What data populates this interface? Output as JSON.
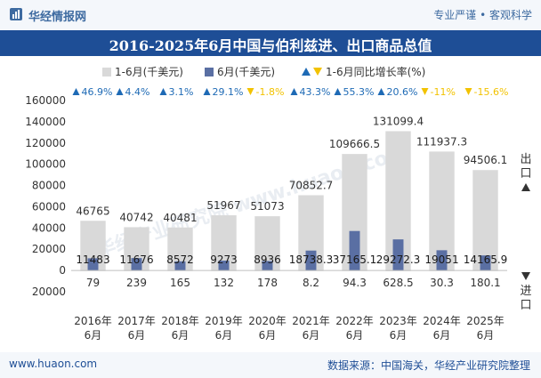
{
  "header": {
    "site_name": "华经情报网",
    "slogan": "专业严谨 • 客观科学",
    "logo_icon": "bar-chart-logo-icon"
  },
  "title": "2016-2025年6月中国与伯利兹进、出口商品总值",
  "footer": {
    "url": "www.huaon.com",
    "source": "数据来源：中国海关，华经产业研究院整理"
  },
  "watermark": "华经产业研究院 www.huaon.com",
  "side_labels": {
    "top": "出口",
    "bottom": "进口"
  },
  "colors": {
    "ytd_bar": "#d9d9d9",
    "month_bar": "#5a6fa3",
    "up": "#1e6ab5",
    "down": "#f2c200",
    "title_bg": "#1e4e96"
  },
  "chart_data": {
    "type": "bar",
    "title": "2016-2025年6月中国与伯利兹进、出口商品总值",
    "categories": [
      "2016年\n6月",
      "2017年\n6月",
      "2018年\n6月",
      "2019年\n6月",
      "2020年\n6月",
      "2021年\n6月",
      "2022年\n6月",
      "2023年\n6月",
      "2024年\n6月",
      "2025年\n6月"
    ],
    "legend": [
      "1-6月(千美元)",
      "6月(千美元)",
      "1-6月同比增长率(%)"
    ],
    "series": [
      {
        "name": "1-6月(千美元) 出口",
        "values": [
          46765,
          40742,
          40481,
          51967,
          51073,
          70852.7,
          109666.5,
          131099.4,
          111937.3,
          94506.1
        ],
        "labels": [
          "46765",
          "40742",
          "40481",
          "51967",
          "51073",
          "70852.7",
          "109666.5",
          "131099.4",
          "111937.3",
          "94506.1"
        ]
      },
      {
        "name": "6月(千美元) 出口",
        "values": [
          11483,
          11676,
          8572,
          9273,
          8936,
          18738.3,
          37165.1,
          29272.3,
          19051,
          14165.9
        ],
        "labels": [
          "11483",
          "11676",
          "8572",
          "9273",
          "8936",
          "18738.3",
          "37165.1",
          "29272.3",
          "19051",
          "14165.9"
        ]
      },
      {
        "name": "1-6月(千美元) 进口",
        "values": [
          79,
          239,
          165,
          132,
          178,
          8.2,
          94.3,
          628.5,
          30.3,
          180.1
        ],
        "labels": [
          "79",
          "239",
          "165",
          "132",
          "178",
          "8.2",
          "94.3",
          "628.5",
          "30.3",
          "180.1"
        ]
      },
      {
        "name": "1-6月同比增长率(%)",
        "values": [
          46.9,
          4.4,
          3.1,
          29.1,
          -1.8,
          43.3,
          55.3,
          20.6,
          -11,
          -15.6
        ],
        "labels": [
          "46.9%",
          "4.4%",
          "3.1%",
          "29.1%",
          "-1.8%",
          "43.3%",
          "55.3%",
          "20.6%",
          "-11%",
          "-15.6%"
        ]
      }
    ],
    "ylim": [
      -20000,
      160000
    ],
    "yticks": [
      -20000,
      0,
      20000,
      40000,
      60000,
      80000,
      100000,
      120000,
      140000,
      160000
    ],
    "ytick_labels": [
      "20000",
      "0",
      "20000",
      "40000",
      "60000",
      "80000",
      "100000",
      "120000",
      "140000",
      "160000"
    ],
    "xlabel": "",
    "ylabel": "",
    "grid": false,
    "legend_position": "top-center"
  }
}
